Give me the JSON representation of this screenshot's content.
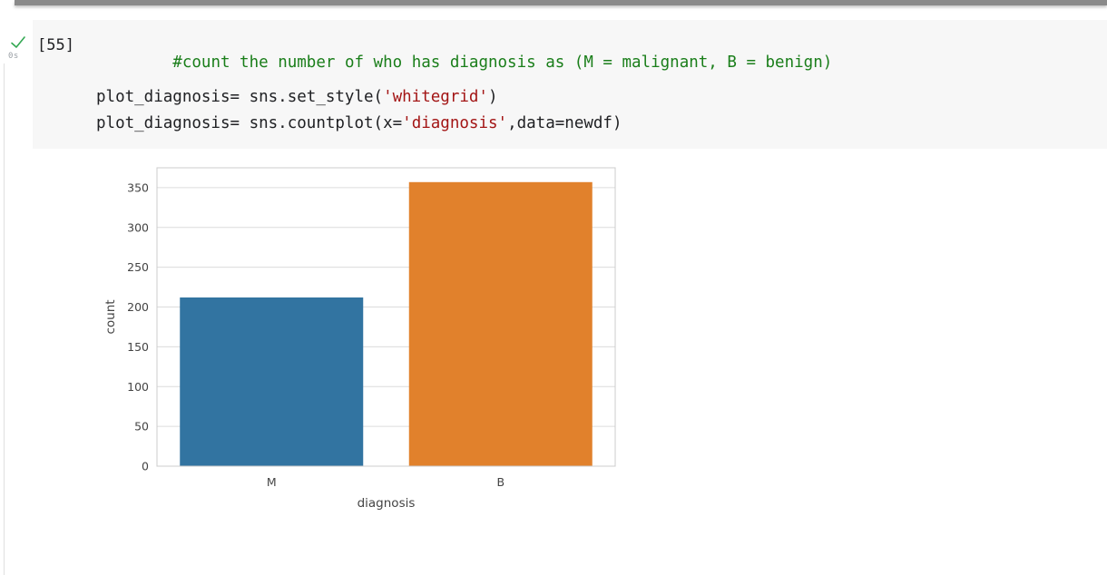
{
  "cell": {
    "status_icon": "check-icon",
    "run_time": "0s",
    "execution_count": "[55]",
    "code": {
      "line1_comment": "#count the number of who has diagnosis as (M = malignant, B = benign)",
      "line2_prefix": "plot_diagnosis= sns.set_style(",
      "line2_string": "'whitegrid'",
      "line2_suffix": ")",
      "line3_prefix": "plot_diagnosis= sns.countplot(x=",
      "line3_string": "'diagnosis'",
      "line3_suffix": ",data=newdf)"
    }
  },
  "colors": {
    "check_green": "#34a853",
    "comment_green": "#1a7e1a",
    "string_red": "#a31515",
    "bar_M": "#3274a1",
    "bar_B": "#e1812c",
    "grid": "#dcdcdc"
  },
  "chart_data": {
    "type": "bar",
    "categories": [
      "M",
      "B"
    ],
    "values": [
      212,
      357
    ],
    "xlabel": "diagnosis",
    "ylabel": "count",
    "ylim": [
      0,
      375
    ],
    "yticks": [
      0,
      50,
      100,
      150,
      200,
      250,
      300,
      350
    ],
    "grid": true,
    "style": "whitegrid"
  }
}
